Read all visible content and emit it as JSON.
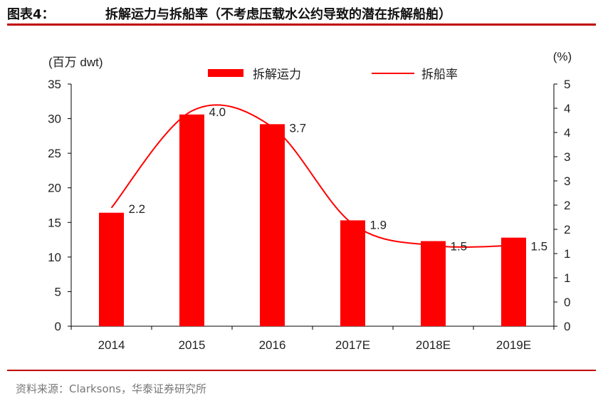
{
  "header": {
    "figure_label": "图表4：",
    "title": "拆解运力与拆船率（不考虑压载水公约导致的潜在拆解船舶）"
  },
  "source_note": "资料来源：Clarksons，华泰证券研究所",
  "colors": {
    "bar": "#ff0000",
    "line": "#ff0000",
    "rule": "#c00000",
    "axis": "#000000"
  },
  "chart_data": {
    "type": "bar",
    "categories": [
      "2014",
      "2015",
      "2016",
      "2017E",
      "2018E",
      "2019E"
    ],
    "series": [
      {
        "name": "拆解运力",
        "type": "bar",
        "axis": "left",
        "values": [
          16.4,
          30.6,
          29.2,
          15.3,
          12.3,
          12.8
        ]
      },
      {
        "name": "拆船率",
        "type": "line",
        "axis": "right",
        "smooth": true,
        "values": [
          2.2,
          4.0,
          3.7,
          1.9,
          1.5,
          1.5
        ],
        "labels": [
          "2.2",
          "4.0",
          "3.7",
          "1.9",
          "1.5",
          "1.5"
        ]
      }
    ],
    "y_left": {
      "label": "(百万 dwt)",
      "min": 0,
      "max": 35,
      "ticks": [
        "0",
        "5",
        "10",
        "15",
        "20",
        "25",
        "30",
        "35"
      ]
    },
    "y_right": {
      "label": "(%)",
      "min": 0,
      "max": 4.5,
      "ticks": [
        "0",
        "0",
        "1",
        "1",
        "2",
        "2",
        "3",
        "3",
        "4",
        "4",
        "5"
      ]
    },
    "legend_position": "top",
    "grid": false
  }
}
